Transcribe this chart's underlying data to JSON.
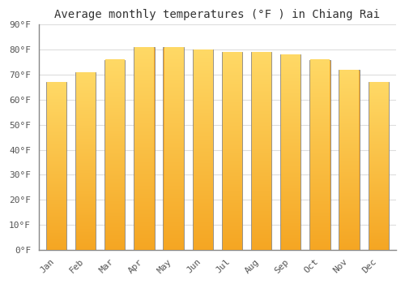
{
  "title": "Average monthly temperatures (°F ) in Chiang Rai",
  "months": [
    "Jan",
    "Feb",
    "Mar",
    "Apr",
    "May",
    "Jun",
    "Jul",
    "Aug",
    "Sep",
    "Oct",
    "Nov",
    "Dec"
  ],
  "values": [
    67,
    71,
    76,
    81,
    81,
    80,
    79,
    79,
    78,
    76,
    72,
    67
  ],
  "bar_color_bottom": "#F5A623",
  "bar_color_top": "#FFD966",
  "bar_edge_color": "#888888",
  "ylim": [
    0,
    90
  ],
  "yticks": [
    0,
    10,
    20,
    30,
    40,
    50,
    60,
    70,
    80,
    90
  ],
  "ytick_labels": [
    "0°F",
    "10°F",
    "20°F",
    "30°F",
    "40°F",
    "50°F",
    "60°F",
    "70°F",
    "80°F",
    "90°F"
  ],
  "background_color": "#FFFFFF",
  "grid_color": "#DDDDDD",
  "title_fontsize": 10,
  "tick_fontsize": 8,
  "font_family": "monospace"
}
